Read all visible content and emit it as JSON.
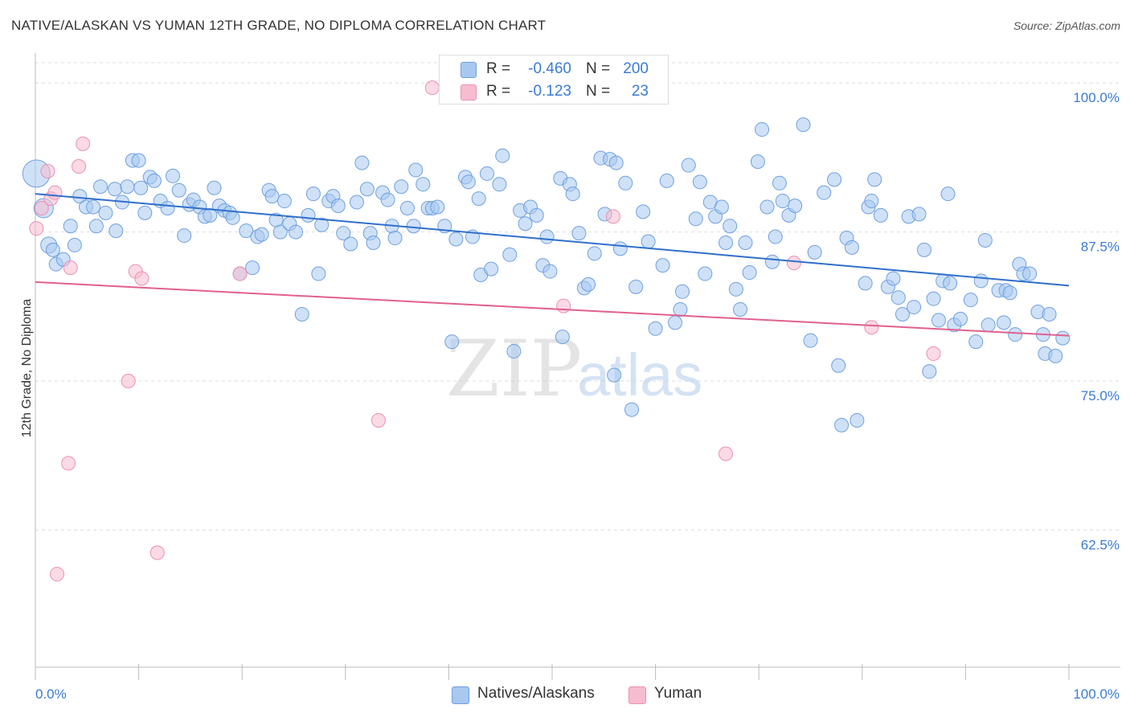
{
  "title": "NATIVE/ALASKAN VS YUMAN 12TH GRADE, NO DIPLOMA CORRELATION CHART",
  "source": "Source: ZipAtlas.com",
  "watermark": {
    "zip": "ZIP",
    "atlas": "atlas"
  },
  "legend_top": {
    "rows": [
      {
        "r_label": "R =",
        "r_value": "-0.460",
        "n_label": "N =",
        "n_value": "200",
        "color": "#a8c8f0",
        "border": "#6fa0e0"
      },
      {
        "r_label": "R =",
        "r_value": "-0.123",
        "n_label": "N =",
        "n_value": "23",
        "color": "#f7bcd0",
        "border": "#ec90b0"
      }
    ]
  },
  "legend_bottom": {
    "items": [
      {
        "label": "Natives/Alaskans",
        "color": "#a8c8f0",
        "border": "#6fa0e0"
      },
      {
        "label": "Yuman",
        "color": "#f7bcd0",
        "border": "#ec90b0"
      }
    ]
  },
  "chart_data": {
    "type": "scatter",
    "title": "NATIVE/ALASKAN VS YUMAN 12TH GRADE, NO DIPLOMA CORRELATION CHART",
    "xlabel": "",
    "ylabel": "12th Grade, No Diploma",
    "xlim": [
      0,
      100
    ],
    "ylim": [
      51,
      101.7
    ],
    "x_tick_labels": [
      "0.0%",
      "100.0%"
    ],
    "y_ticks": [
      62.5,
      75.0,
      87.5,
      100.0
    ],
    "y_tick_labels": [
      "62.5%",
      "75.0%",
      "87.5%",
      "100.0%"
    ],
    "grid": "horizontal dashed",
    "colors": {
      "natives": "#a8c8f0",
      "natives_line": "#2f6fcc",
      "yuman": "#f7bcd0",
      "yuman_line": "#e0608f"
    },
    "series": [
      {
        "name": "Natives/Alaskans",
        "trend": {
          "x": [
            0,
            100
          ],
          "y": [
            90.7,
            83.0
          ]
        },
        "points": [
          [
            0.1,
            92.4
          ],
          [
            0.8,
            89.5
          ],
          [
            1.3,
            86.4
          ],
          [
            1.7,
            86.0
          ],
          [
            2.0,
            84.8
          ],
          [
            2.7,
            85.2
          ],
          [
            3.4,
            88.0
          ],
          [
            3.8,
            86.4
          ],
          [
            4.3,
            90.5
          ],
          [
            4.9,
            89.6
          ],
          [
            5.6,
            89.6
          ],
          [
            5.9,
            88.0
          ],
          [
            6.3,
            91.3
          ],
          [
            6.8,
            89.1
          ],
          [
            7.7,
            91.1
          ],
          [
            7.8,
            87.6
          ],
          [
            8.4,
            90.0
          ],
          [
            8.9,
            91.3
          ],
          [
            9.4,
            93.5
          ],
          [
            10.0,
            93.5
          ],
          [
            10.2,
            91.2
          ],
          [
            10.6,
            89.1
          ],
          [
            11.1,
            92.1
          ],
          [
            11.5,
            91.8
          ],
          [
            12.1,
            90.1
          ],
          [
            12.8,
            89.5
          ],
          [
            13.3,
            92.2
          ],
          [
            13.9,
            91.0
          ],
          [
            14.4,
            87.2
          ],
          [
            14.9,
            89.8
          ],
          [
            15.3,
            90.2
          ],
          [
            15.9,
            89.6
          ],
          [
            16.4,
            88.8
          ],
          [
            16.9,
            88.9
          ],
          [
            17.3,
            91.2
          ],
          [
            17.8,
            89.7
          ],
          [
            18.3,
            89.3
          ],
          [
            18.8,
            89.1
          ],
          [
            19.1,
            88.7
          ],
          [
            19.8,
            84.0
          ],
          [
            20.4,
            87.6
          ],
          [
            21.0,
            84.5
          ],
          [
            21.5,
            87.1
          ],
          [
            21.9,
            87.3
          ],
          [
            22.6,
            91.0
          ],
          [
            22.9,
            90.5
          ],
          [
            23.3,
            88.5
          ],
          [
            23.7,
            87.5
          ],
          [
            24.1,
            90.1
          ],
          [
            24.6,
            88.2
          ],
          [
            25.2,
            87.5
          ],
          [
            25.8,
            80.6
          ],
          [
            26.4,
            88.9
          ],
          [
            26.9,
            90.7
          ],
          [
            27.4,
            84.0
          ],
          [
            27.7,
            88.1
          ],
          [
            28.4,
            90.1
          ],
          [
            28.8,
            90.5
          ],
          [
            29.3,
            89.7
          ],
          [
            29.8,
            87.4
          ],
          [
            30.5,
            86.5
          ],
          [
            31.1,
            90.0
          ],
          [
            31.6,
            93.3
          ],
          [
            32.1,
            91.1
          ],
          [
            32.4,
            87.4
          ],
          [
            32.7,
            86.6
          ],
          [
            33.6,
            90.8
          ],
          [
            34.1,
            90.2
          ],
          [
            34.5,
            88.0
          ],
          [
            34.8,
            87.0
          ],
          [
            35.4,
            91.3
          ],
          [
            36.0,
            89.5
          ],
          [
            36.6,
            88.0
          ],
          [
            36.8,
            92.7
          ],
          [
            37.5,
            91.5
          ],
          [
            38.0,
            89.5
          ],
          [
            38.4,
            89.5
          ],
          [
            38.9,
            89.6
          ],
          [
            39.6,
            88.0
          ],
          [
            40.3,
            78.3
          ],
          [
            40.7,
            86.9
          ],
          [
            41.6,
            92.1
          ],
          [
            41.9,
            91.7
          ],
          [
            42.3,
            87.1
          ],
          [
            42.9,
            90.3
          ],
          [
            43.1,
            83.9
          ],
          [
            43.7,
            92.4
          ],
          [
            44.1,
            84.4
          ],
          [
            44.9,
            91.5
          ],
          [
            45.2,
            93.9
          ],
          [
            45.9,
            85.6
          ],
          [
            46.3,
            77.5
          ],
          [
            46.9,
            89.3
          ],
          [
            47.4,
            88.2
          ],
          [
            47.9,
            89.6
          ],
          [
            48.5,
            88.9
          ],
          [
            49.1,
            84.7
          ],
          [
            49.5,
            87.1
          ],
          [
            49.8,
            84.2
          ],
          [
            50.8,
            92.0
          ],
          [
            51.0,
            78.7
          ],
          [
            51.7,
            91.5
          ],
          [
            52.0,
            90.7
          ],
          [
            52.6,
            87.4
          ],
          [
            53.1,
            82.8
          ],
          [
            53.5,
            83.1
          ],
          [
            54.1,
            85.7
          ],
          [
            54.7,
            93.7
          ],
          [
            55.1,
            89.0
          ],
          [
            55.6,
            93.6
          ],
          [
            56.2,
            93.3
          ],
          [
            56.6,
            86.1
          ],
          [
            57.1,
            91.6
          ],
          [
            57.7,
            72.6
          ],
          [
            58.1,
            82.9
          ],
          [
            58.8,
            89.2
          ],
          [
            59.3,
            86.7
          ],
          [
            60.0,
            79.4
          ],
          [
            60.7,
            84.7
          ],
          [
            61.1,
            91.8
          ],
          [
            61.9,
            79.9
          ],
          [
            62.4,
            81.0
          ],
          [
            62.6,
            82.5
          ],
          [
            63.2,
            93.1
          ],
          [
            63.9,
            88.6
          ],
          [
            64.3,
            91.7
          ],
          [
            64.8,
            84.0
          ],
          [
            65.3,
            90.0
          ],
          [
            65.8,
            88.8
          ],
          [
            66.4,
            89.6
          ],
          [
            66.8,
            86.6
          ],
          [
            67.2,
            88.0
          ],
          [
            67.8,
            82.7
          ],
          [
            68.2,
            81.0
          ],
          [
            68.7,
            86.6
          ],
          [
            69.1,
            84.1
          ],
          [
            69.9,
            93.4
          ],
          [
            70.3,
            96.1
          ],
          [
            70.8,
            89.6
          ],
          [
            71.3,
            85.0
          ],
          [
            71.6,
            87.1
          ],
          [
            72.0,
            91.6
          ],
          [
            72.3,
            90.1
          ],
          [
            72.9,
            88.9
          ],
          [
            73.5,
            89.7
          ],
          [
            74.3,
            96.5
          ],
          [
            75.0,
            78.4
          ],
          [
            75.4,
            85.8
          ],
          [
            76.3,
            90.8
          ],
          [
            77.3,
            91.9
          ],
          [
            77.7,
            76.3
          ],
          [
            78.0,
            71.3
          ],
          [
            78.5,
            87.0
          ],
          [
            79.0,
            86.2
          ],
          [
            79.5,
            71.7
          ],
          [
            80.3,
            83.2
          ],
          [
            80.6,
            89.6
          ],
          [
            80.9,
            90.1
          ],
          [
            81.2,
            91.9
          ],
          [
            81.8,
            88.9
          ],
          [
            82.5,
            82.9
          ],
          [
            83.0,
            83.6
          ],
          [
            83.5,
            82.0
          ],
          [
            83.9,
            80.6
          ],
          [
            84.5,
            88.8
          ],
          [
            85.0,
            81.2
          ],
          [
            85.5,
            89.0
          ],
          [
            86.0,
            86.0
          ],
          [
            86.5,
            75.8
          ],
          [
            86.9,
            81.9
          ],
          [
            87.4,
            80.1
          ],
          [
            87.8,
            83.4
          ],
          [
            88.3,
            90.7
          ],
          [
            88.5,
            83.2
          ],
          [
            88.9,
            79.7
          ],
          [
            89.5,
            80.2
          ],
          [
            90.5,
            81.8
          ],
          [
            91.0,
            78.3
          ],
          [
            91.5,
            83.4
          ],
          [
            91.9,
            86.8
          ],
          [
            92.2,
            79.7
          ],
          [
            93.2,
            82.6
          ],
          [
            93.7,
            79.9
          ],
          [
            93.9,
            82.6
          ],
          [
            94.3,
            82.4
          ],
          [
            94.8,
            78.9
          ],
          [
            95.2,
            84.8
          ],
          [
            95.6,
            84.0
          ],
          [
            96.2,
            84.0
          ],
          [
            97.0,
            80.8
          ],
          [
            97.5,
            78.9
          ],
          [
            97.7,
            77.3
          ],
          [
            98.1,
            80.6
          ],
          [
            98.7,
            77.1
          ],
          [
            99.4,
            78.6
          ],
          [
            60.2,
            98.8
          ],
          [
            57.9,
            99.0
          ],
          [
            56.0,
            75.5
          ],
          [
            45.0,
            99.4
          ]
        ]
      },
      {
        "name": "Yuman",
        "trend": {
          "x": [
            0,
            100
          ],
          "y": [
            83.3,
            78.8
          ]
        },
        "points": [
          [
            0.1,
            87.8
          ],
          [
            0.6,
            89.5
          ],
          [
            1.2,
            92.6
          ],
          [
            1.5,
            90.3
          ],
          [
            1.9,
            90.8
          ],
          [
            2.1,
            58.8
          ],
          [
            3.2,
            68.1
          ],
          [
            3.4,
            84.5
          ],
          [
            4.2,
            93.0
          ],
          [
            4.6,
            94.9
          ],
          [
            9.0,
            75.0
          ],
          [
            9.7,
            84.2
          ],
          [
            10.3,
            83.6
          ],
          [
            11.8,
            60.6
          ],
          [
            19.8,
            84.0
          ],
          [
            33.2,
            71.7
          ],
          [
            38.4,
            99.6
          ],
          [
            51.1,
            81.3
          ],
          [
            55.9,
            88.8
          ],
          [
            66.8,
            68.9
          ],
          [
            73.4,
            84.9
          ],
          [
            80.9,
            79.5
          ],
          [
            86.9,
            77.3
          ]
        ]
      }
    ]
  }
}
